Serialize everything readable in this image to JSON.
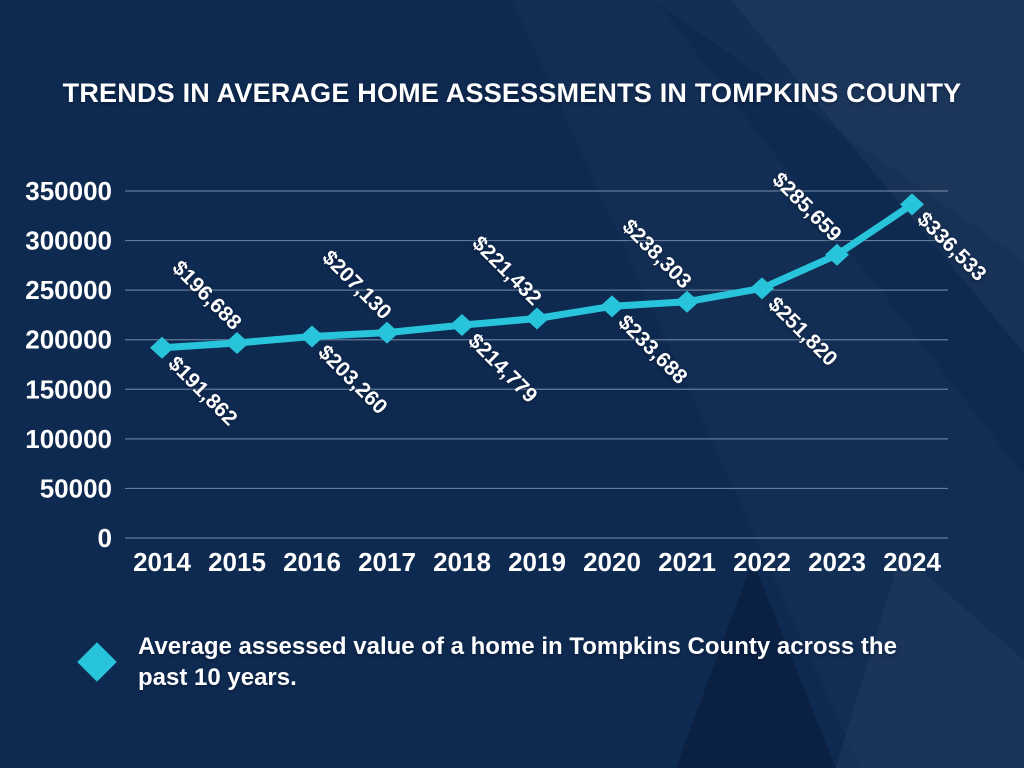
{
  "page": {
    "background_color": "#0f2a51",
    "accent_color": "#27c4db",
    "text_color": "#ffffff"
  },
  "header": {
    "title": "TRENDS IN AVERAGE HOME ASSESSMENTS IN TOMPKINS COUNTY"
  },
  "legend": {
    "marker_icon": "diamond-icon",
    "marker_color": "#27c4db",
    "lines": [
      "Average assessed value of a home in Tompkins County across the",
      "past 10 years."
    ]
  },
  "chart_data": {
    "type": "line",
    "title": "TRENDS IN AVERAGE HOME ASSESSMENTS IN TOMPKINS COUNTY",
    "categories": [
      "2014",
      "2015",
      "2016",
      "2017",
      "2018",
      "2019",
      "2020",
      "2021",
      "2022",
      "2023",
      "2024"
    ],
    "series": [
      {
        "name": "Average assessed value of a home in Tompkins County across the past 10 years.",
        "values": [
          191862,
          196688,
          203260,
          207130,
          214779,
          221432,
          233688,
          238303,
          251820,
          285659,
          336533
        ],
        "labels": [
          "$191,862",
          "$196,688",
          "$203,260",
          "$207,130",
          "$214,779",
          "$221,432",
          "$233,688",
          "$238,303",
          "$251,820",
          "$285,659",
          "$336,533"
        ],
        "label_positions": [
          "below",
          "above",
          "below",
          "above",
          "below",
          "above",
          "below",
          "above",
          "below",
          "above",
          "below-right"
        ],
        "color": "#27c4db",
        "marker": "diamond"
      }
    ],
    "xlabel": "",
    "ylabel": "",
    "ylim": [
      0,
      350000
    ],
    "yticks": [
      0,
      50000,
      100000,
      150000,
      200000,
      250000,
      300000,
      350000
    ],
    "grid": "horizontal",
    "gridline_color": "rgba(170,188,214,0.55)",
    "legend_position": "bottom-left",
    "data_label_rotation_deg": 45
  }
}
